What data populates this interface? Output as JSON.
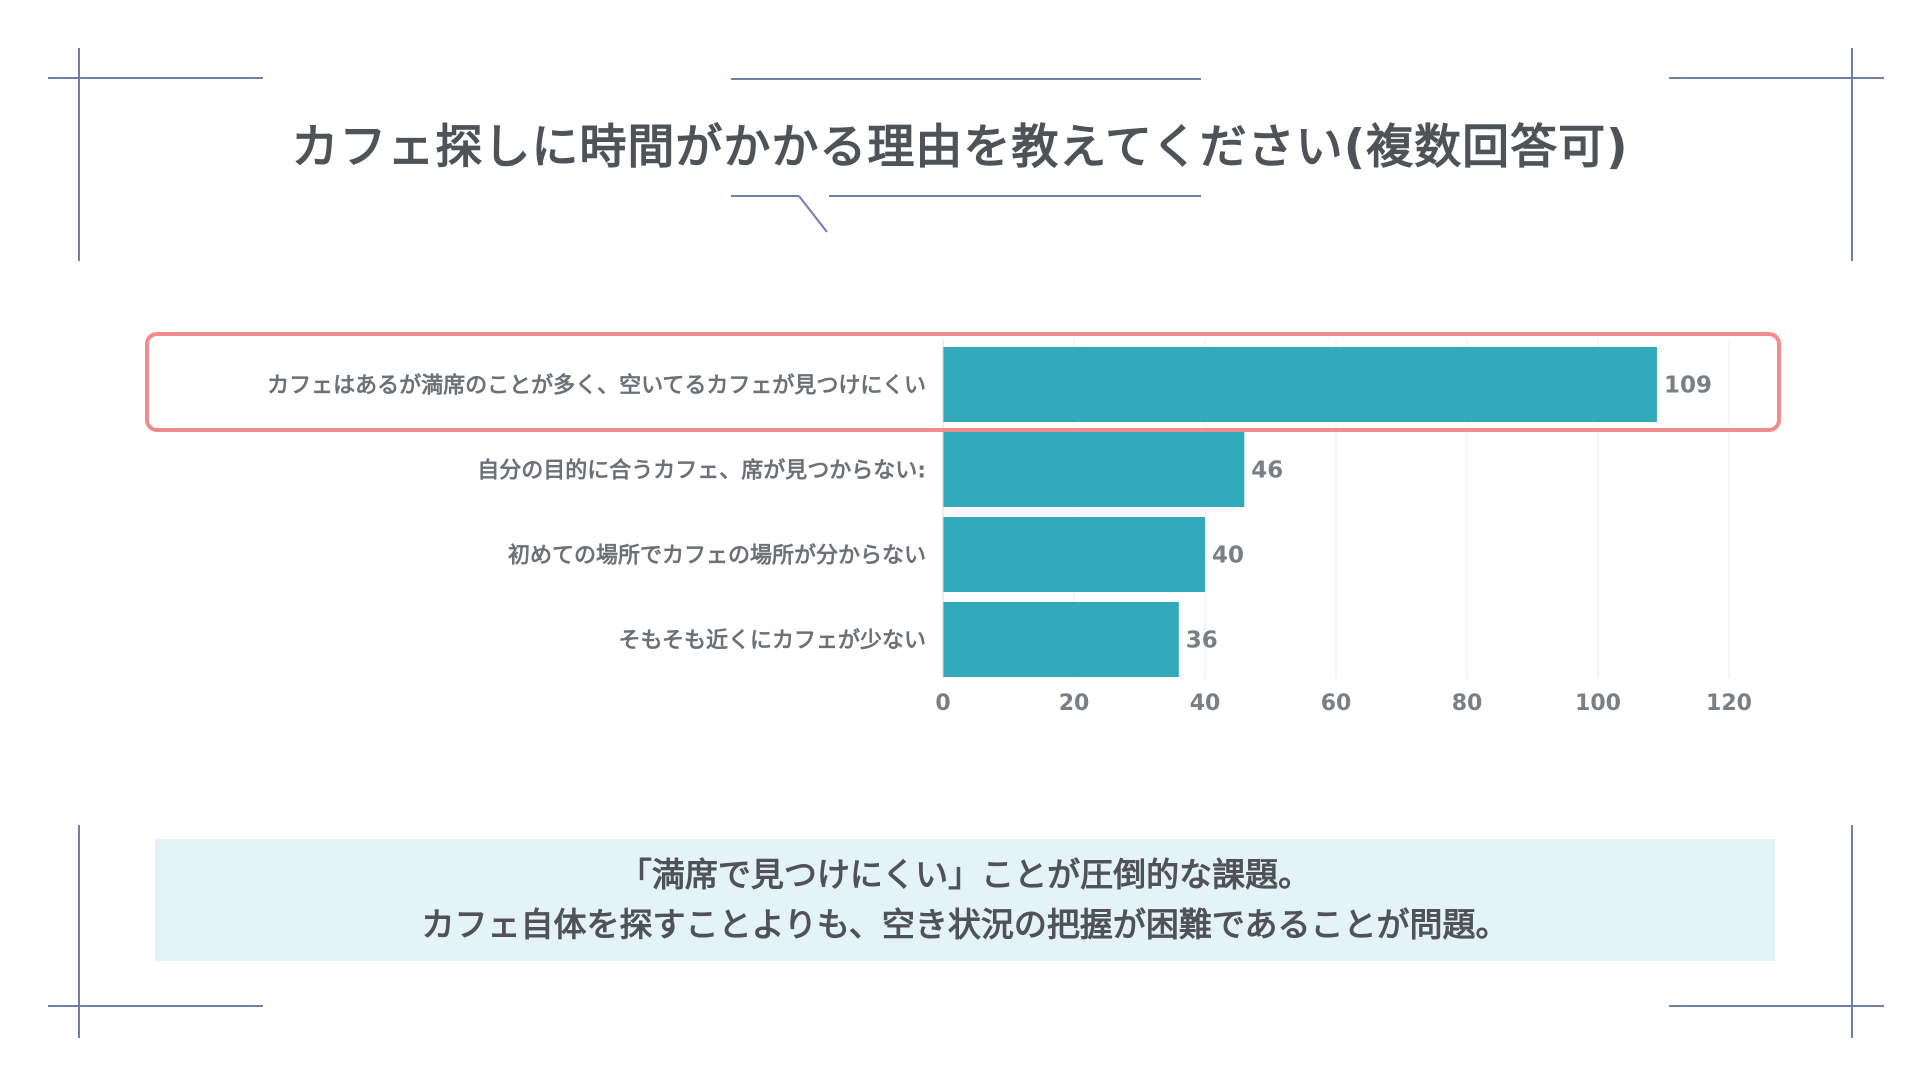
{
  "title": "カフェ探しに時間がかかる理由を教えてください(複数回答可)",
  "chart_data": {
    "type": "bar",
    "orientation": "horizontal",
    "categories": [
      "カフェはあるが満席のことが多く、空いてるカフェが見つけにくい",
      "自分の目的に合うカフェ、席が見つからない:",
      "初めての場所でカフェの場所が分からない",
      "そもそも近くにカフェが少ない"
    ],
    "values": [
      109,
      46,
      40,
      36
    ],
    "xlim": [
      0,
      120
    ],
    "xticks": [
      0,
      20,
      40,
      60,
      80,
      100,
      120
    ],
    "grid": true,
    "bar_color": "#33a9bc",
    "highlight_color": "#f28b8b",
    "highlighted_category_index": 0
  },
  "callout": {
    "line1": "「満席で見つけにくい」ことが圧倒的な課題。",
    "line2": "カフェ自体を探すことよりも、空き状況の把握が困難であることが問題。"
  }
}
